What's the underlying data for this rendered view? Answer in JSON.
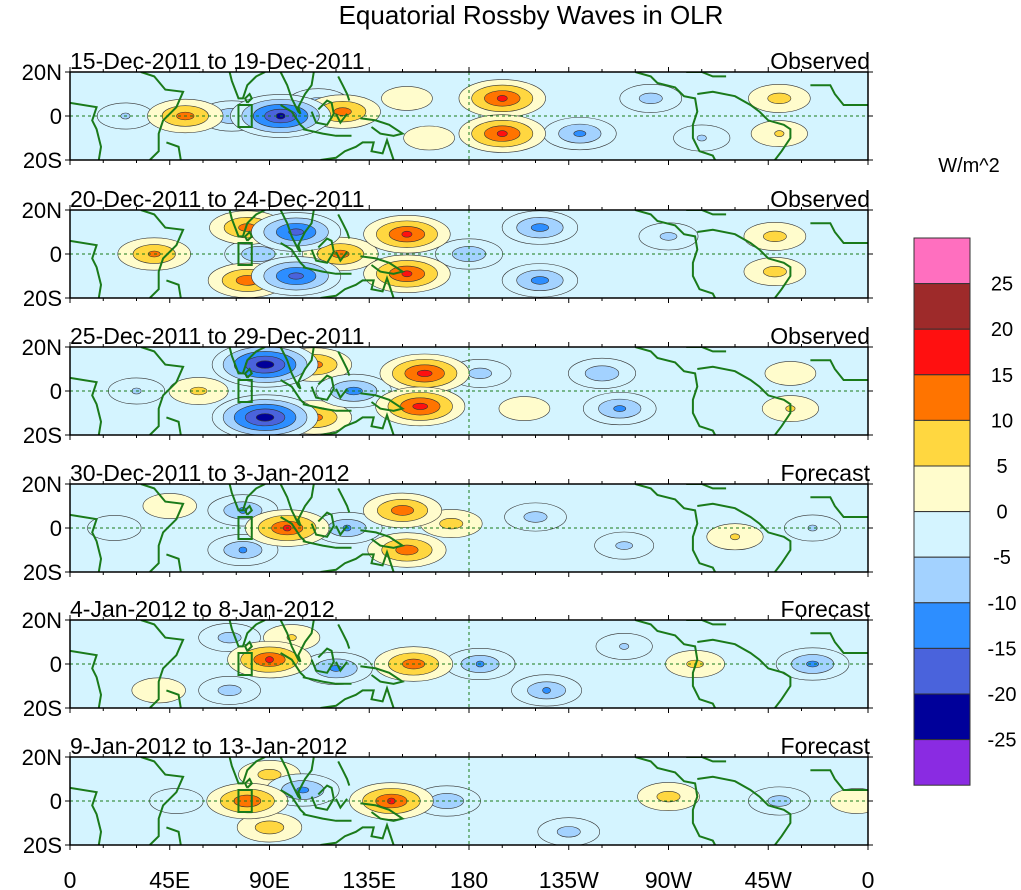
{
  "chart_data": {
    "type": "heatmap",
    "title": "Equatorial Rossby Waves in OLR",
    "units_label": "W/m^2",
    "lat_tick_labels": [
      "20N",
      "0",
      "20S"
    ],
    "lat_ticks": [
      20,
      0,
      -20
    ],
    "lon_range": [
      0,
      360
    ],
    "lat_range": [
      -20,
      20
    ],
    "lon_tick_labels": [
      "0",
      "45E",
      "90E",
      "135E",
      "180",
      "135W",
      "90W",
      "45W",
      "0"
    ],
    "lon_ticks": [
      0,
      45,
      90,
      135,
      180,
      225,
      270,
      315,
      360
    ],
    "reference_lines": {
      "equator_lat": 0,
      "dateline_lon": 180,
      "box_lon": [
        76,
        82
      ],
      "box_lat": [
        -5,
        5
      ]
    },
    "colorbar": {
      "tick_labels": [
        "25",
        "20",
        "15",
        "10",
        "5",
        "0",
        "-5",
        "-10",
        "-15",
        "-20",
        "-25"
      ],
      "levels": [
        25,
        20,
        15,
        10,
        5,
        0,
        -5,
        -10,
        -15,
        -20,
        -25
      ],
      "colors": [
        "#ff6fbf",
        "#9e2a2a",
        "#ff1010",
        "#ff7400",
        "#ffd740",
        "#fffccc",
        "#d4f4ff",
        "#a3d2ff",
        "#2d8eff",
        "#4a63dc",
        "#00009a",
        "#8a2be2"
      ]
    },
    "panels": [
      {
        "date_range": "15-Dec-2011 to 19-Dec-2011",
        "status": "Observed",
        "anomalies": [
          {
            "lon": 195,
            "lat": 8,
            "value": 17
          },
          {
            "lon": 195,
            "lat": -8,
            "value": 17
          },
          {
            "lon": 52,
            "lat": 0,
            "value": 13
          },
          {
            "lon": 123,
            "lat": 2,
            "value": 13
          },
          {
            "lon": 152,
            "lat": 8,
            "value": 4
          },
          {
            "lon": 162,
            "lat": -10,
            "value": 4
          },
          {
            "lon": 320,
            "lat": 8,
            "value": 8
          },
          {
            "lon": 320,
            "lat": -8,
            "value": 6
          },
          {
            "lon": 95,
            "lat": 0,
            "value": -22
          },
          {
            "lon": 73,
            "lat": 0,
            "value": -10
          },
          {
            "lon": 112,
            "lat": 6,
            "value": -8
          },
          {
            "lon": 230,
            "lat": -8,
            "value": -12
          },
          {
            "lon": 262,
            "lat": 8,
            "value": -8
          },
          {
            "lon": 25,
            "lat": 0,
            "value": -6
          },
          {
            "lon": 285,
            "lat": -10,
            "value": -6
          }
        ]
      },
      {
        "date_range": "20-Dec-2011 to 24-Dec-2011",
        "status": "Observed",
        "anomalies": [
          {
            "lon": 152,
            "lat": 9,
            "value": 17
          },
          {
            "lon": 152,
            "lat": -9,
            "value": 17
          },
          {
            "lon": 122,
            "lat": 0,
            "value": 13
          },
          {
            "lon": 80,
            "lat": 12,
            "value": 13
          },
          {
            "lon": 80,
            "lat": -12,
            "value": 14
          },
          {
            "lon": 38,
            "lat": 0,
            "value": 12
          },
          {
            "lon": 318,
            "lat": 8,
            "value": 8
          },
          {
            "lon": 318,
            "lat": -8,
            "value": 8
          },
          {
            "lon": 102,
            "lat": 10,
            "value": -18
          },
          {
            "lon": 102,
            "lat": -10,
            "value": -18
          },
          {
            "lon": 85,
            "lat": 0,
            "value": -10
          },
          {
            "lon": 180,
            "lat": 0,
            "value": -10
          },
          {
            "lon": 212,
            "lat": 12,
            "value": -13
          },
          {
            "lon": 212,
            "lat": -12,
            "value": -13
          },
          {
            "lon": 270,
            "lat": 8,
            "value": -7
          }
        ]
      },
      {
        "date_range": "25-Dec-2011 to 29-Dec-2011",
        "status": "Observed",
        "anomalies": [
          {
            "lon": 160,
            "lat": 8,
            "value": 18
          },
          {
            "lon": 158,
            "lat": -7,
            "value": 18
          },
          {
            "lon": 110,
            "lat": 12,
            "value": 13
          },
          {
            "lon": 110,
            "lat": -12,
            "value": 13
          },
          {
            "lon": 58,
            "lat": 0,
            "value": 7
          },
          {
            "lon": 205,
            "lat": -8,
            "value": 4
          },
          {
            "lon": 325,
            "lat": -8,
            "value": 6
          },
          {
            "lon": 325,
            "lat": 8,
            "value": 4
          },
          {
            "lon": 88,
            "lat": 12,
            "value": -24
          },
          {
            "lon": 88,
            "lat": -12,
            "value": -24
          },
          {
            "lon": 128,
            "lat": 0,
            "value": -13
          },
          {
            "lon": 185,
            "lat": 8,
            "value": -8
          },
          {
            "lon": 240,
            "lat": 8,
            "value": -10
          },
          {
            "lon": 248,
            "lat": -8,
            "value": -12
          },
          {
            "lon": 30,
            "lat": 0,
            "value": -6
          }
        ]
      },
      {
        "date_range": "30-Dec-2011 to 3-Jan-2012",
        "status": "Forecast",
        "anomalies": [
          {
            "lon": 98,
            "lat": 0,
            "value": 16
          },
          {
            "lon": 150,
            "lat": 8,
            "value": 14
          },
          {
            "lon": 152,
            "lat": -10,
            "value": 14
          },
          {
            "lon": 172,
            "lat": 2,
            "value": 8
          },
          {
            "lon": 45,
            "lat": 10,
            "value": 5
          },
          {
            "lon": 300,
            "lat": -4,
            "value": 6
          },
          {
            "lon": 78,
            "lat": 8,
            "value": -11
          },
          {
            "lon": 78,
            "lat": -10,
            "value": -11
          },
          {
            "lon": 125,
            "lat": 0,
            "value": -11
          },
          {
            "lon": 210,
            "lat": 5,
            "value": -8
          },
          {
            "lon": 250,
            "lat": -8,
            "value": -7
          },
          {
            "lon": 335,
            "lat": 0,
            "value": -6
          },
          {
            "lon": 20,
            "lat": 0,
            "value": -5
          }
        ]
      },
      {
        "date_range": "4-Jan-2012 to 8-Jan-2012",
        "status": "Forecast",
        "anomalies": [
          {
            "lon": 90,
            "lat": 2,
            "value": 16
          },
          {
            "lon": 155,
            "lat": 0,
            "value": 14
          },
          {
            "lon": 100,
            "lat": 12,
            "value": 6
          },
          {
            "lon": 282,
            "lat": 0,
            "value": 7
          },
          {
            "lon": 40,
            "lat": -12,
            "value": 5
          },
          {
            "lon": 72,
            "lat": 12,
            "value": -8
          },
          {
            "lon": 72,
            "lat": -12,
            "value": -8
          },
          {
            "lon": 120,
            "lat": -2,
            "value": -12
          },
          {
            "lon": 185,
            "lat": 0,
            "value": -11
          },
          {
            "lon": 215,
            "lat": -12,
            "value": -11
          },
          {
            "lon": 335,
            "lat": 0,
            "value": -12
          },
          {
            "lon": 250,
            "lat": 8,
            "value": -6
          }
        ]
      },
      {
        "date_range": "9-Jan-2012 to 13-Jan-2012",
        "status": "Forecast",
        "anomalies": [
          {
            "lon": 80,
            "lat": 0,
            "value": 15
          },
          {
            "lon": 145,
            "lat": 0,
            "value": 16
          },
          {
            "lon": 90,
            "lat": 12,
            "value": 8
          },
          {
            "lon": 90,
            "lat": -12,
            "value": 9
          },
          {
            "lon": 270,
            "lat": 2,
            "value": 8
          },
          {
            "lon": 355,
            "lat": 0,
            "value": 5
          },
          {
            "lon": 105,
            "lat": 5,
            "value": -12
          },
          {
            "lon": 170,
            "lat": 0,
            "value": -10
          },
          {
            "lon": 225,
            "lat": -14,
            "value": -8
          },
          {
            "lon": 320,
            "lat": 0,
            "value": -8
          },
          {
            "lon": 48,
            "lat": 0,
            "value": -5
          }
        ]
      }
    ]
  }
}
